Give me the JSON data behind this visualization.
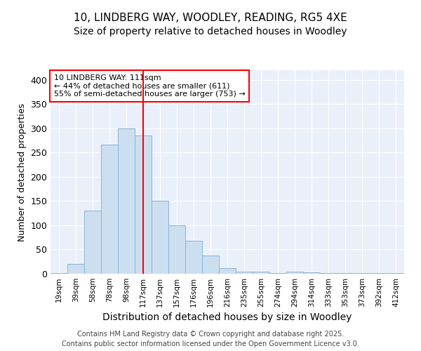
{
  "title1": "10, LINDBERG WAY, WOODLEY, READING, RG5 4XE",
  "title2": "Size of property relative to detached houses in Woodley",
  "xlabel": "Distribution of detached houses by size in Woodley",
  "ylabel": "Number of detached properties",
  "bin_labels": [
    "19sqm",
    "39sqm",
    "58sqm",
    "78sqm",
    "98sqm",
    "117sqm",
    "137sqm",
    "157sqm",
    "176sqm",
    "196sqm",
    "216sqm",
    "235sqm",
    "255sqm",
    "274sqm",
    "294sqm",
    "314sqm",
    "333sqm",
    "353sqm",
    "373sqm",
    "392sqm",
    "412sqm"
  ],
  "bar_heights": [
    1,
    20,
    130,
    267,
    300,
    285,
    150,
    100,
    68,
    37,
    11,
    5,
    4,
    2,
    4,
    3,
    1,
    1,
    1,
    1,
    1
  ],
  "bar_color": "#ccdff0",
  "bar_edgecolor": "#8ab4d4",
  "red_line_index": 5,
  "annotation_text": "10 LINDBERG WAY: 111sqm\n← 44% of detached houses are smaller (611)\n55% of semi-detached houses are larger (753) →",
  "ylim": [
    0,
    420
  ],
  "yticks": [
    0,
    50,
    100,
    150,
    200,
    250,
    300,
    350,
    400
  ],
  "footer_line1": "Contains HM Land Registry data © Crown copyright and database right 2025.",
  "footer_line2": "Contains public sector information licensed under the Open Government Licence v3.0.",
  "bg_color": "#eaf0fa",
  "title_fontsize": 11,
  "subtitle_fontsize": 10,
  "xlabel_fontsize": 10,
  "ylabel_fontsize": 9,
  "footer_fontsize": 7
}
